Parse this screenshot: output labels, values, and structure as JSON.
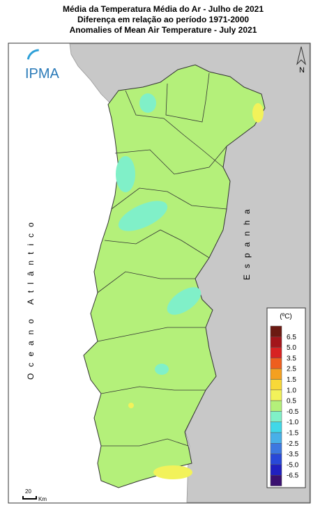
{
  "header": {
    "title": [
      "Média da Temperatura Média do Ar - Julho de 2021",
      "Diferença em relação ao período 1971-2000",
      "Anomalies of Mean Air Temperature - July 2021"
    ]
  },
  "logo": "IPMA",
  "north": "N",
  "ocean_label": "Oceano Atlântico",
  "country_label": "Espanha",
  "scale": {
    "value": "20",
    "unit": "Km"
  },
  "legend": {
    "title": "(ºC)",
    "labels": [
      "6.5",
      "5.0",
      "3.5",
      "2.5",
      "1.5",
      "1.0",
      "0.5",
      "-0.5",
      "-1.0",
      "-1.5",
      "-2.5",
      "-3.5",
      "-5.0",
      "-6.5"
    ],
    "colors": [
      "#6b1a12",
      "#a3151a",
      "#d82222",
      "#ee5e1e",
      "#f4a020",
      "#f8d838",
      "#f2f25a",
      "#b4f07a",
      "#80f0c8",
      "#40d8e8",
      "#48b0e8",
      "#3c78e0",
      "#2848d8",
      "#2020c0",
      "#3a1070"
    ]
  }
}
